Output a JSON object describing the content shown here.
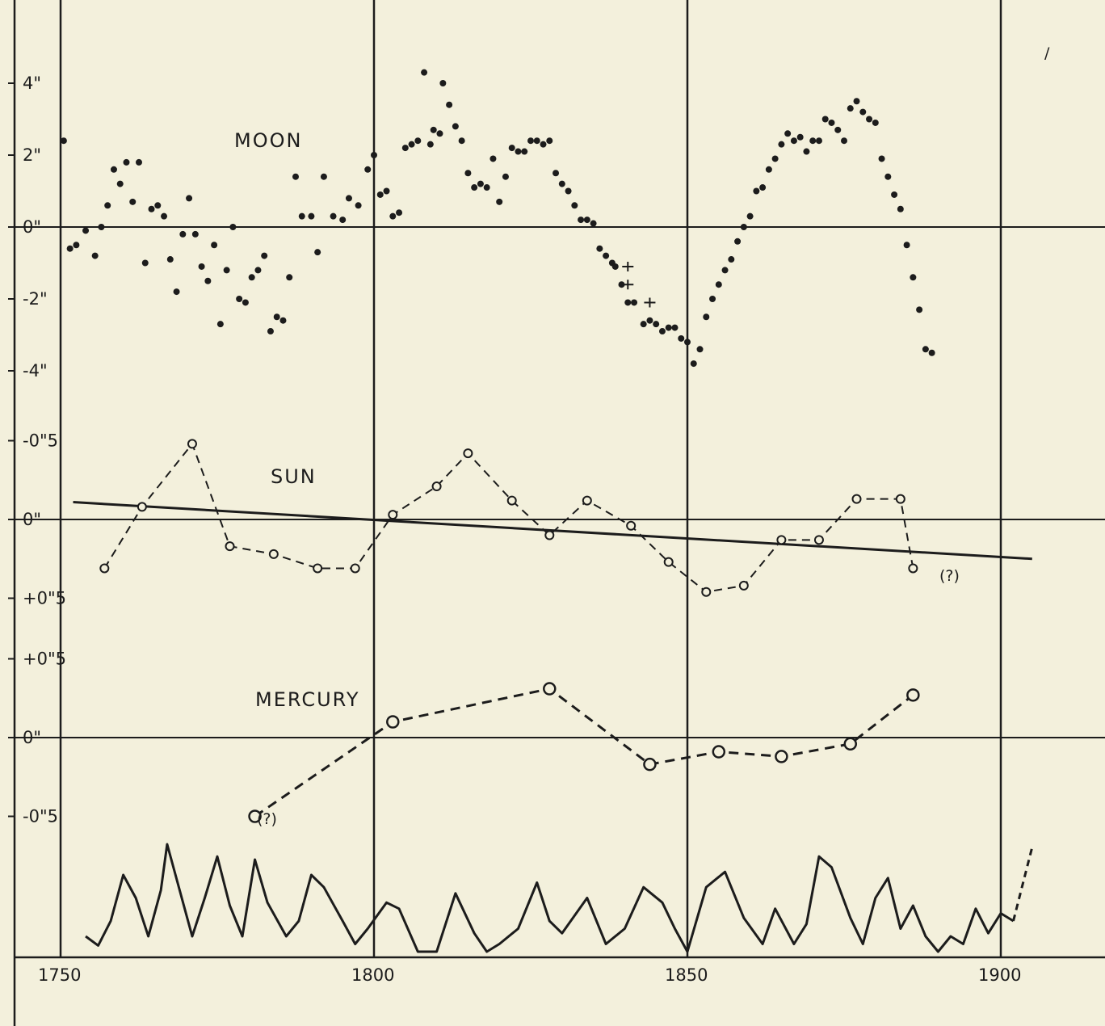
{
  "chart_data": [
    {
      "type": "scatter",
      "title": "Moon",
      "xlim": [
        1750,
        1910
      ],
      "ylim": [
        -4.5,
        5
      ],
      "yticks": [
        {
          "v": 4,
          "t": "4\""
        },
        {
          "v": 2,
          "t": "2\""
        },
        {
          "v": 0,
          "t": "0\""
        },
        {
          "v": -2,
          "t": "-2\""
        },
        {
          "v": -4,
          "t": "-4\""
        }
      ],
      "points": [
        [
          1750.5,
          2.4
        ],
        [
          1751.5,
          -0.6
        ],
        [
          1752.5,
          -0.5
        ],
        [
          1754,
          -0.1
        ],
        [
          1755.5,
          -0.8
        ],
        [
          1756.5,
          0
        ],
        [
          1757.5,
          0.6
        ],
        [
          1758.5,
          1.6
        ],
        [
          1759.5,
          1.2
        ],
        [
          1760.5,
          1.8
        ],
        [
          1761.5,
          0.7
        ],
        [
          1762.5,
          1.8
        ],
        [
          1763.5,
          -1
        ],
        [
          1764.5,
          0.5
        ],
        [
          1765.5,
          0.6
        ],
        [
          1766.5,
          0.3
        ],
        [
          1767.5,
          -0.9
        ],
        [
          1768.5,
          -1.8
        ],
        [
          1769.5,
          -0.2
        ],
        [
          1770.5,
          0.8
        ],
        [
          1771.5,
          -0.2
        ],
        [
          1772.5,
          -1.1
        ],
        [
          1773.5,
          -1.5
        ],
        [
          1774.5,
          -0.5
        ],
        [
          1775.5,
          -2.7
        ],
        [
          1776.5,
          -1.2
        ],
        [
          1777.5,
          0
        ],
        [
          1778.5,
          -2.0
        ],
        [
          1779.5,
          -2.1
        ],
        [
          1780.5,
          -1.4
        ],
        [
          1781.5,
          -1.2
        ],
        [
          1782.5,
          -0.8
        ],
        [
          1783.5,
          -2.9
        ],
        [
          1784.5,
          -2.5
        ],
        [
          1785.5,
          -2.6
        ],
        [
          1786.5,
          -1.4
        ],
        [
          1787.5,
          1.4
        ],
        [
          1788.5,
          0.3
        ],
        [
          1790,
          0.3
        ],
        [
          1791,
          -0.7
        ],
        [
          1792,
          1.4
        ],
        [
          1793.5,
          0.3
        ],
        [
          1795,
          0.2
        ],
        [
          1796,
          0.8
        ],
        [
          1797.5,
          0.6
        ],
        [
          1799,
          1.6
        ],
        [
          1800,
          2.0
        ],
        [
          1801,
          0.9
        ],
        [
          1802,
          1.0
        ],
        [
          1803,
          0.3
        ],
        [
          1804,
          0.4
        ],
        [
          1805,
          2.2
        ],
        [
          1806,
          2.3
        ],
        [
          1807,
          2.4
        ],
        [
          1808,
          4.3
        ],
        [
          1809,
          2.3
        ],
        [
          1809.5,
          2.7
        ],
        [
          1810.5,
          2.6
        ],
        [
          1811,
          4.0
        ],
        [
          1812,
          3.4
        ],
        [
          1813,
          2.8
        ],
        [
          1814,
          2.4
        ],
        [
          1815,
          1.5
        ],
        [
          1816,
          1.1
        ],
        [
          1817,
          1.2
        ],
        [
          1818,
          1.1
        ],
        [
          1819,
          1.9
        ],
        [
          1820,
          0.7
        ],
        [
          1821,
          1.4
        ],
        [
          1822,
          2.2
        ],
        [
          1823,
          2.1
        ],
        [
          1824,
          2.1
        ],
        [
          1825,
          2.4
        ],
        [
          1826,
          2.4
        ],
        [
          1827,
          2.3
        ],
        [
          1828,
          2.4
        ],
        [
          1829,
          1.5
        ],
        [
          1830,
          1.2
        ],
        [
          1831,
          1.0
        ],
        [
          1832,
          0.6
        ],
        [
          1833,
          0.2
        ],
        [
          1834,
          0.2
        ],
        [
          1835,
          0.1
        ],
        [
          1836,
          -0.6
        ],
        [
          1837,
          -0.8
        ],
        [
          1838,
          -1.0
        ],
        [
          1838.5,
          -1.1
        ],
        [
          1839.5,
          -1.6
        ],
        [
          1840.5,
          -2.1
        ],
        [
          1841.5,
          -2.1
        ],
        [
          1843,
          -2.7
        ],
        [
          1844,
          -2.6
        ],
        [
          1845,
          -2.7
        ],
        [
          1846,
          -2.9
        ],
        [
          1847,
          -2.8
        ],
        [
          1848,
          -2.8
        ],
        [
          1849,
          -3.1
        ],
        [
          1850,
          -3.2
        ],
        [
          1851,
          -3.8
        ],
        [
          1852,
          -3.4
        ],
        [
          1853,
          -2.5
        ],
        [
          1854,
          -2.0
        ],
        [
          1855,
          -1.6
        ],
        [
          1856,
          -1.2
        ],
        [
          1857,
          -0.9
        ],
        [
          1858,
          -0.4
        ],
        [
          1859,
          0.0
        ],
        [
          1860,
          0.3
        ],
        [
          1861,
          1.0
        ],
        [
          1862,
          1.1
        ],
        [
          1863,
          1.6
        ],
        [
          1864,
          1.9
        ],
        [
          1865,
          2.3
        ],
        [
          1866,
          2.6
        ],
        [
          1867,
          2.4
        ],
        [
          1868,
          2.5
        ],
        [
          1869,
          2.1
        ],
        [
          1870,
          2.4
        ],
        [
          1871,
          2.4
        ],
        [
          1872,
          3.0
        ],
        [
          1873,
          2.9
        ],
        [
          1874,
          2.7
        ],
        [
          1875,
          2.4
        ],
        [
          1876,
          3.3
        ],
        [
          1877,
          3.5
        ],
        [
          1878,
          3.2
        ],
        [
          1879,
          3.0
        ],
        [
          1880,
          2.9
        ],
        [
          1881,
          1.9
        ],
        [
          1882,
          1.4
        ],
        [
          1883,
          0.9
        ],
        [
          1884,
          0.5
        ],
        [
          1885,
          -0.5
        ],
        [
          1886,
          -1.4
        ],
        [
          1887,
          -2.3
        ],
        [
          1888,
          -3.4
        ],
        [
          1889,
          -3.5
        ]
      ],
      "crosses": [
        [
          1840.5,
          -1.1
        ],
        [
          1840.5,
          -1.6
        ],
        [
          1844,
          -2.1
        ]
      ]
    },
    {
      "type": "line",
      "title": "Sun",
      "xlim": [
        1750,
        1910
      ],
      "ylim": [
        -0.85,
        0.85
      ],
      "yticks": [
        {
          "v": 0.5,
          "t": "-0\"5"
        },
        {
          "v": 0,
          "t": "0\""
        },
        {
          "v": -0.5,
          "t": "+0\"5"
        }
      ],
      "x": [
        1757,
        1763,
        1771,
        1777,
        1784,
        1791,
        1797,
        1803,
        1810,
        1815,
        1822,
        1828,
        1834,
        1841,
        1847,
        1853,
        1859,
        1865,
        1871,
        1877,
        1884,
        1886
      ],
      "y": [
        -0.31,
        0.08,
        0.48,
        -0.17,
        -0.22,
        -0.31,
        -0.31,
        0.03,
        0.21,
        0.42,
        0.12,
        -0.1,
        0.12,
        -0.04,
        -0.27,
        -0.46,
        -0.42,
        -0.13,
        -0.13,
        0.13,
        0.13,
        -0.31
      ],
      "trend": {
        "x": [
          1752,
          1905
        ],
        "y": [
          0.11,
          -0.25
        ]
      },
      "annotations": [
        {
          "text": "(?)"
        }
      ]
    },
    {
      "type": "line",
      "title": "Mercury",
      "xlim": [
        1750,
        1910
      ],
      "ylim": [
        -0.85,
        0.85
      ],
      "yticks": [
        {
          "v": 0.5,
          "t": "+0\"5"
        },
        {
          "v": 0,
          "t": "0\""
        },
        {
          "v": -0.5,
          "t": "-0\"5"
        }
      ],
      "x": [
        1781,
        1803,
        1828,
        1844,
        1855,
        1865,
        1876,
        1886
      ],
      "y": [
        -0.5,
        0.1,
        0.31,
        -0.17,
        -0.09,
        -0.12,
        -0.04,
        0.27
      ],
      "annotations": [
        {
          "text": "(?)"
        }
      ]
    },
    {
      "type": "line",
      "title": "",
      "xlim": [
        1750,
        1910
      ],
      "ylim": [
        0,
        1
      ],
      "xticks": [
        {
          "v": 1750,
          "t": "1750"
        },
        {
          "v": 1800,
          "t": "1800"
        },
        {
          "v": 1850,
          "t": "1850"
        },
        {
          "v": 1900,
          "t": "1900"
        }
      ],
      "x": [
        1754,
        1756,
        1758,
        1760,
        1762,
        1764,
        1766,
        1767,
        1769,
        1771,
        1773,
        1775,
        1777,
        1779,
        1781,
        1783,
        1786,
        1788,
        1790,
        1792,
        1795,
        1797,
        1799,
        1802,
        1804,
        1807,
        1810,
        1813,
        1816,
        1818,
        1820,
        1823,
        1826,
        1828,
        1830,
        1834,
        1837,
        1840,
        1843,
        1846,
        1848,
        1850,
        1853,
        1856,
        1859,
        1862,
        1864,
        1867,
        1869,
        1871,
        1873,
        1876,
        1878,
        1880,
        1882,
        1884,
        1886,
        1888,
        1890,
        1892,
        1894,
        1896,
        1898,
        1900,
        1902,
        1905
      ],
      "y": [
        0.1,
        0.04,
        0.2,
        0.5,
        0.35,
        0.1,
        0.4,
        0.7,
        0.4,
        0.1,
        0.35,
        0.62,
        0.3,
        0.1,
        0.6,
        0.32,
        0.1,
        0.2,
        0.5,
        0.42,
        0.2,
        0.05,
        0.15,
        0.32,
        0.28,
        0.0,
        0.0,
        0.38,
        0.12,
        0.0,
        0.05,
        0.15,
        0.45,
        0.2,
        0.12,
        0.35,
        0.05,
        0.15,
        0.42,
        0.32,
        0.15,
        0.0,
        0.42,
        0.52,
        0.22,
        0.05,
        0.28,
        0.05,
        0.18,
        0.62,
        0.55,
        0.22,
        0.05,
        0.35,
        0.48,
        0.15,
        0.3,
        0.1,
        0.0,
        0.1,
        0.05,
        0.28,
        0.12,
        0.25,
        0.2,
        0.68
      ]
    }
  ],
  "texts": {
    "moon": "MOON",
    "sun": "SUN",
    "mercury": "MERCURY",
    "sun_note": "(?)",
    "mercury_note": "(?)",
    "corner_mark": "/"
  },
  "colors": {
    "ink": "#1c1c1c",
    "paper": "#f3f0dc"
  }
}
